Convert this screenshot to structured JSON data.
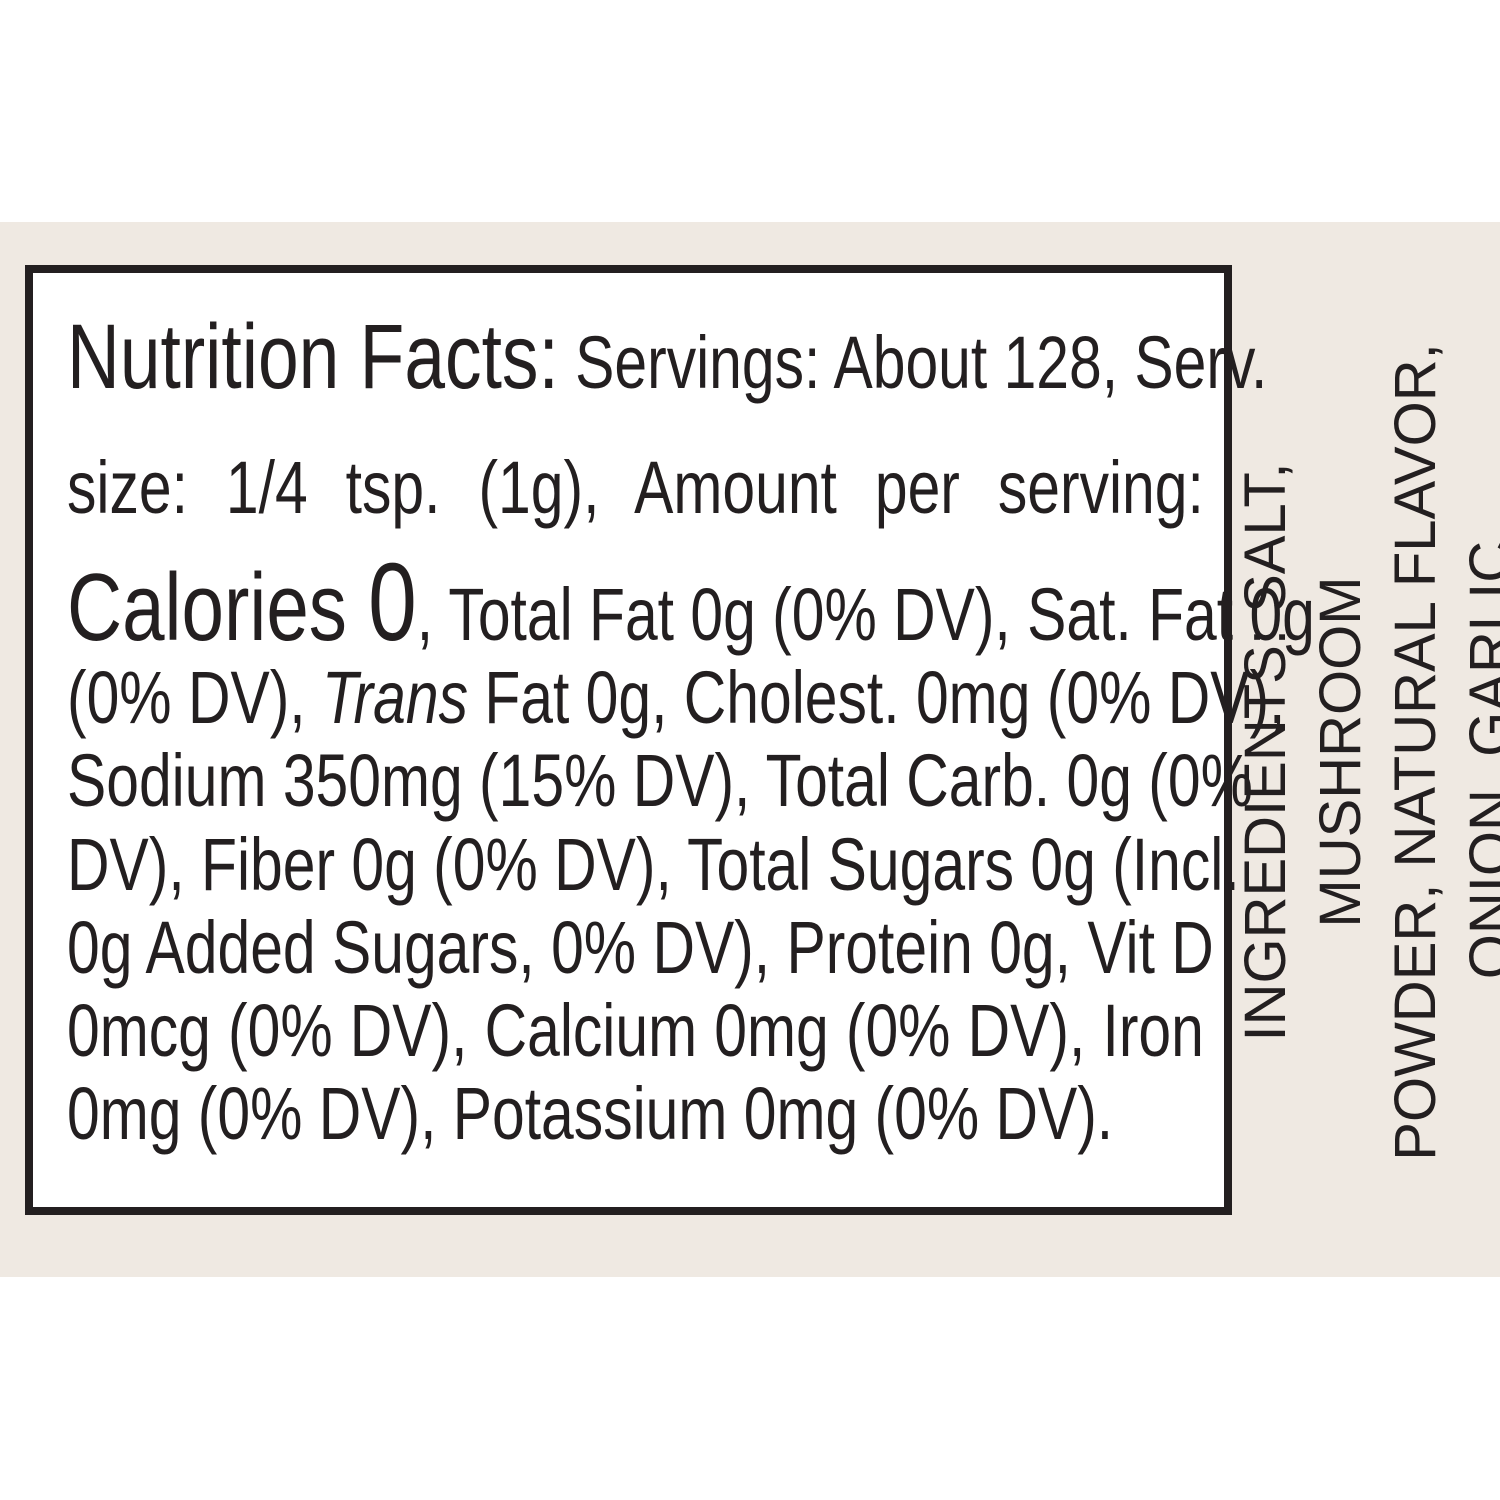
{
  "nutrition": {
    "title": "Nutrition Facts:",
    "line1_rest": " Servings: About 128, Serv.",
    "line2": "size: 1/4 tsp. (1g), Amount per serving:",
    "calories_label": "Calories ",
    "calories_value": "0",
    "line3_rest": ", Total Fat 0g (0% DV), Sat. Fat 0g",
    "line4_a": "(0% DV), ",
    "line4_trans": "Trans",
    "line4_b": " Fat 0g, Cholest. 0mg (0% DV),",
    "line5": "Sodium 350mg (15% DV), Total Carb. 0g (0%",
    "line6": "DV), Fiber 0g (0% DV), Total Sugars 0g (Incl.",
    "line7": "0g Added Sugars, 0% DV), Protein 0g, Vit D",
    "line8": "0mcg (0% DV), Calcium 0mg (0% DV), Iron",
    "line9": "0mg (0% DV), Potassium 0mg (0% DV)."
  },
  "ingredients": {
    "line1": "INGREDIENTS: SALT, MUSHROOM",
    "line2": "POWDER, NATURAL FLAVOR,",
    "line3": "ONION, GARLIC."
  },
  "colors": {
    "band": "#efe9e2",
    "text": "#231f20"
  }
}
